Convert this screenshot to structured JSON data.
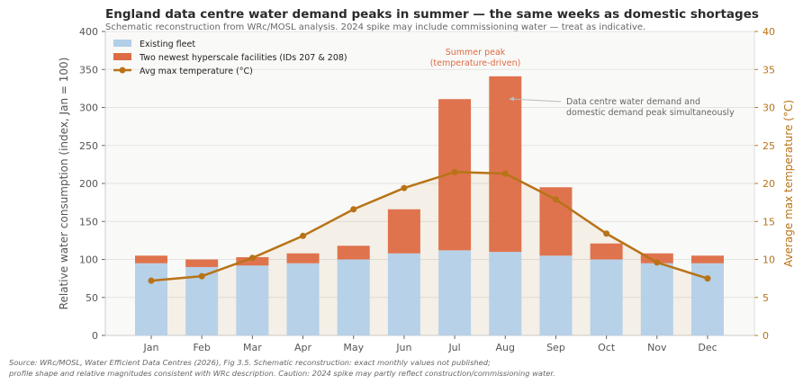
{
  "chart_data": {
    "type": "bar",
    "title": "England data centre water demand peaks in summer — the same weeks as domestic shortages",
    "subtitle": "Schematic reconstruction from WRc/MOSL analysis. 2024 spike may include commissioning water — treat as indicative.",
    "categories": [
      "Jan",
      "Feb",
      "Mar",
      "Apr",
      "May",
      "Jun",
      "Jul",
      "Aug",
      "Sep",
      "Oct",
      "Nov",
      "Dec"
    ],
    "series": [
      {
        "name": "Existing fleet",
        "type": "bar",
        "stack": "a",
        "color": "#b3cfe8",
        "values": [
          95,
          90,
          92,
          95,
          100,
          108,
          112,
          110,
          105,
          100,
          95,
          95
        ]
      },
      {
        "name": "Two newest hyperscale facilities (IDs 207 & 208)",
        "type": "bar",
        "stack": "a",
        "color": "#dd6b45",
        "values": [
          10,
          10,
          11,
          13,
          18,
          58,
          199,
          231,
          90,
          21,
          13,
          10
        ]
      },
      {
        "name": "Avg max temperature (°C)",
        "type": "line",
        "axis": "right",
        "color": "#b87317",
        "values": [
          7.2,
          7.8,
          10.2,
          13.1,
          16.6,
          19.4,
          21.5,
          21.3,
          17.9,
          13.4,
          9.6,
          7.5
        ]
      }
    ],
    "ylabel": "Relative water consumption (index, Jan = 100)",
    "y2label": "Average max temperature (°C)",
    "ylim": [
      0,
      400
    ],
    "yticks": [
      0,
      50,
      100,
      150,
      200,
      250,
      300,
      350,
      400
    ],
    "y2lim": [
      0,
      40
    ],
    "y2ticks": [
      0,
      5,
      10,
      15,
      20,
      25,
      30,
      35,
      40
    ],
    "grid": true,
    "legend": "top-left",
    "annotations": [
      {
        "text": [
          "Summer peak",
          "(temperature-driven)"
        ],
        "color": "#dd6b45"
      },
      {
        "text": [
          "Data centre water demand and",
          "domestic demand peak simultaneously"
        ],
        "color": "#666666",
        "arrow_to": "Aug"
      }
    ]
  },
  "source": "Source: WRc/MOSL, Water Efficient Data Centres (2026), Fig 3.5. Schematic reconstruction: exact monthly values not published;\nprofile shape and relative magnitudes consistent with WRc description. Caution: 2024 spike may partly reflect construction/commissioning water."
}
